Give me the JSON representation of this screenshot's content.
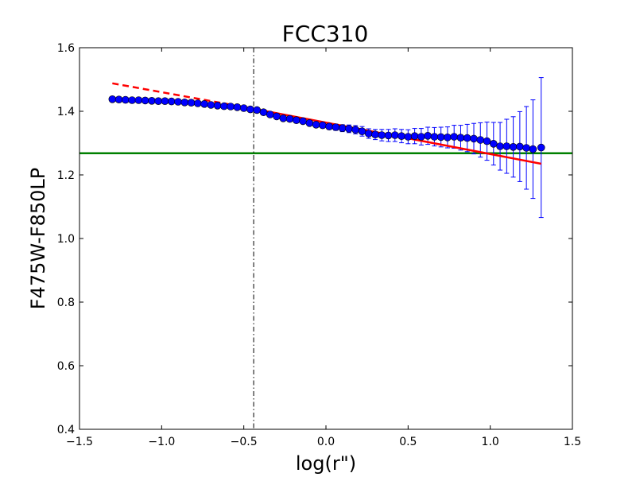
{
  "chart_data": {
    "type": "scatter",
    "title": "FCC310",
    "xlabel": "log(r\")",
    "ylabel": "F475W-F850LP",
    "xlim": [
      -1.5,
      1.5
    ],
    "ylim": [
      0.4,
      1.6
    ],
    "x_ticks": [
      -1.5,
      -1.0,
      -0.5,
      0.0,
      0.5,
      1.0,
      1.5
    ],
    "x_tick_labels": [
      "−1.5",
      "−1.0",
      "−0.5",
      "0.0",
      "0.5",
      "1.0",
      "1.5"
    ],
    "y_ticks": [
      0.4,
      0.6,
      0.8,
      1.0,
      1.2,
      1.4,
      1.6
    ],
    "y_tick_labels": [
      "0.4",
      "0.6",
      "0.8",
      "1.0",
      "1.2",
      "1.4",
      "1.6"
    ],
    "grid": false,
    "colors": {
      "points": "#0000ff",
      "fit": "#ff0000",
      "reference": "#008000",
      "marker_line": "#000000"
    },
    "vertical_line_x": -0.44,
    "horizontal_line_y": 1.268,
    "fit_line": {
      "dashed_x": [
        -1.3,
        -0.44
      ],
      "dashed_y": [
        1.488,
        1.408
      ],
      "solid_x": [
        -0.44,
        1.31
      ],
      "solid_y": [
        1.408,
        1.235
      ]
    },
    "series": [
      {
        "x": [
          -1.3,
          -1.26,
          -1.22,
          -1.18,
          -1.14,
          -1.1,
          -1.06,
          -1.02,
          -0.98,
          -0.94,
          -0.9,
          -0.86,
          -0.82,
          -0.78,
          -0.74,
          -0.7,
          -0.66,
          -0.62,
          -0.58,
          -0.54,
          -0.5,
          -0.46,
          -0.42,
          -0.38,
          -0.34,
          -0.3,
          -0.26,
          -0.22,
          -0.18,
          -0.14,
          -0.1,
          -0.06,
          -0.02,
          0.02,
          0.06,
          0.1,
          0.14,
          0.18,
          0.22,
          0.26,
          0.3,
          0.34,
          0.38,
          0.42,
          0.46,
          0.5,
          0.54,
          0.58,
          0.62,
          0.66,
          0.7,
          0.74,
          0.78,
          0.82,
          0.86,
          0.9,
          0.94,
          0.98,
          1.02,
          1.06,
          1.1,
          1.14,
          1.18,
          1.22,
          1.26,
          1.31
        ],
        "y": [
          1.438,
          1.437,
          1.436,
          1.435,
          1.435,
          1.434,
          1.433,
          1.432,
          1.432,
          1.431,
          1.43,
          1.428,
          1.427,
          1.425,
          1.423,
          1.42,
          1.418,
          1.416,
          1.415,
          1.413,
          1.41,
          1.406,
          1.404,
          1.397,
          1.39,
          1.384,
          1.378,
          1.376,
          1.372,
          1.369,
          1.363,
          1.358,
          1.356,
          1.352,
          1.35,
          1.347,
          1.345,
          1.342,
          1.337,
          1.33,
          1.327,
          1.325,
          1.324,
          1.325,
          1.322,
          1.32,
          1.322,
          1.32,
          1.323,
          1.32,
          1.319,
          1.318,
          1.32,
          1.317,
          1.316,
          1.314,
          1.31,
          1.306,
          1.298,
          1.29,
          1.29,
          1.288,
          1.289,
          1.285,
          1.281,
          1.286
        ],
        "yerr": [
          0.003,
          0.003,
          0.003,
          0.003,
          0.003,
          0.003,
          0.003,
          0.003,
          0.003,
          0.003,
          0.003,
          0.003,
          0.003,
          0.003,
          0.003,
          0.003,
          0.003,
          0.003,
          0.003,
          0.003,
          0.003,
          0.004,
          0.004,
          0.004,
          0.005,
          0.005,
          0.005,
          0.006,
          0.006,
          0.007,
          0.007,
          0.008,
          0.008,
          0.009,
          0.01,
          0.011,
          0.012,
          0.013,
          0.015,
          0.015,
          0.016,
          0.018,
          0.019,
          0.02,
          0.021,
          0.022,
          0.024,
          0.026,
          0.027,
          0.029,
          0.031,
          0.033,
          0.036,
          0.039,
          0.043,
          0.048,
          0.054,
          0.06,
          0.067,
          0.075,
          0.085,
          0.095,
          0.11,
          0.13,
          0.155,
          0.22
        ]
      }
    ]
  }
}
